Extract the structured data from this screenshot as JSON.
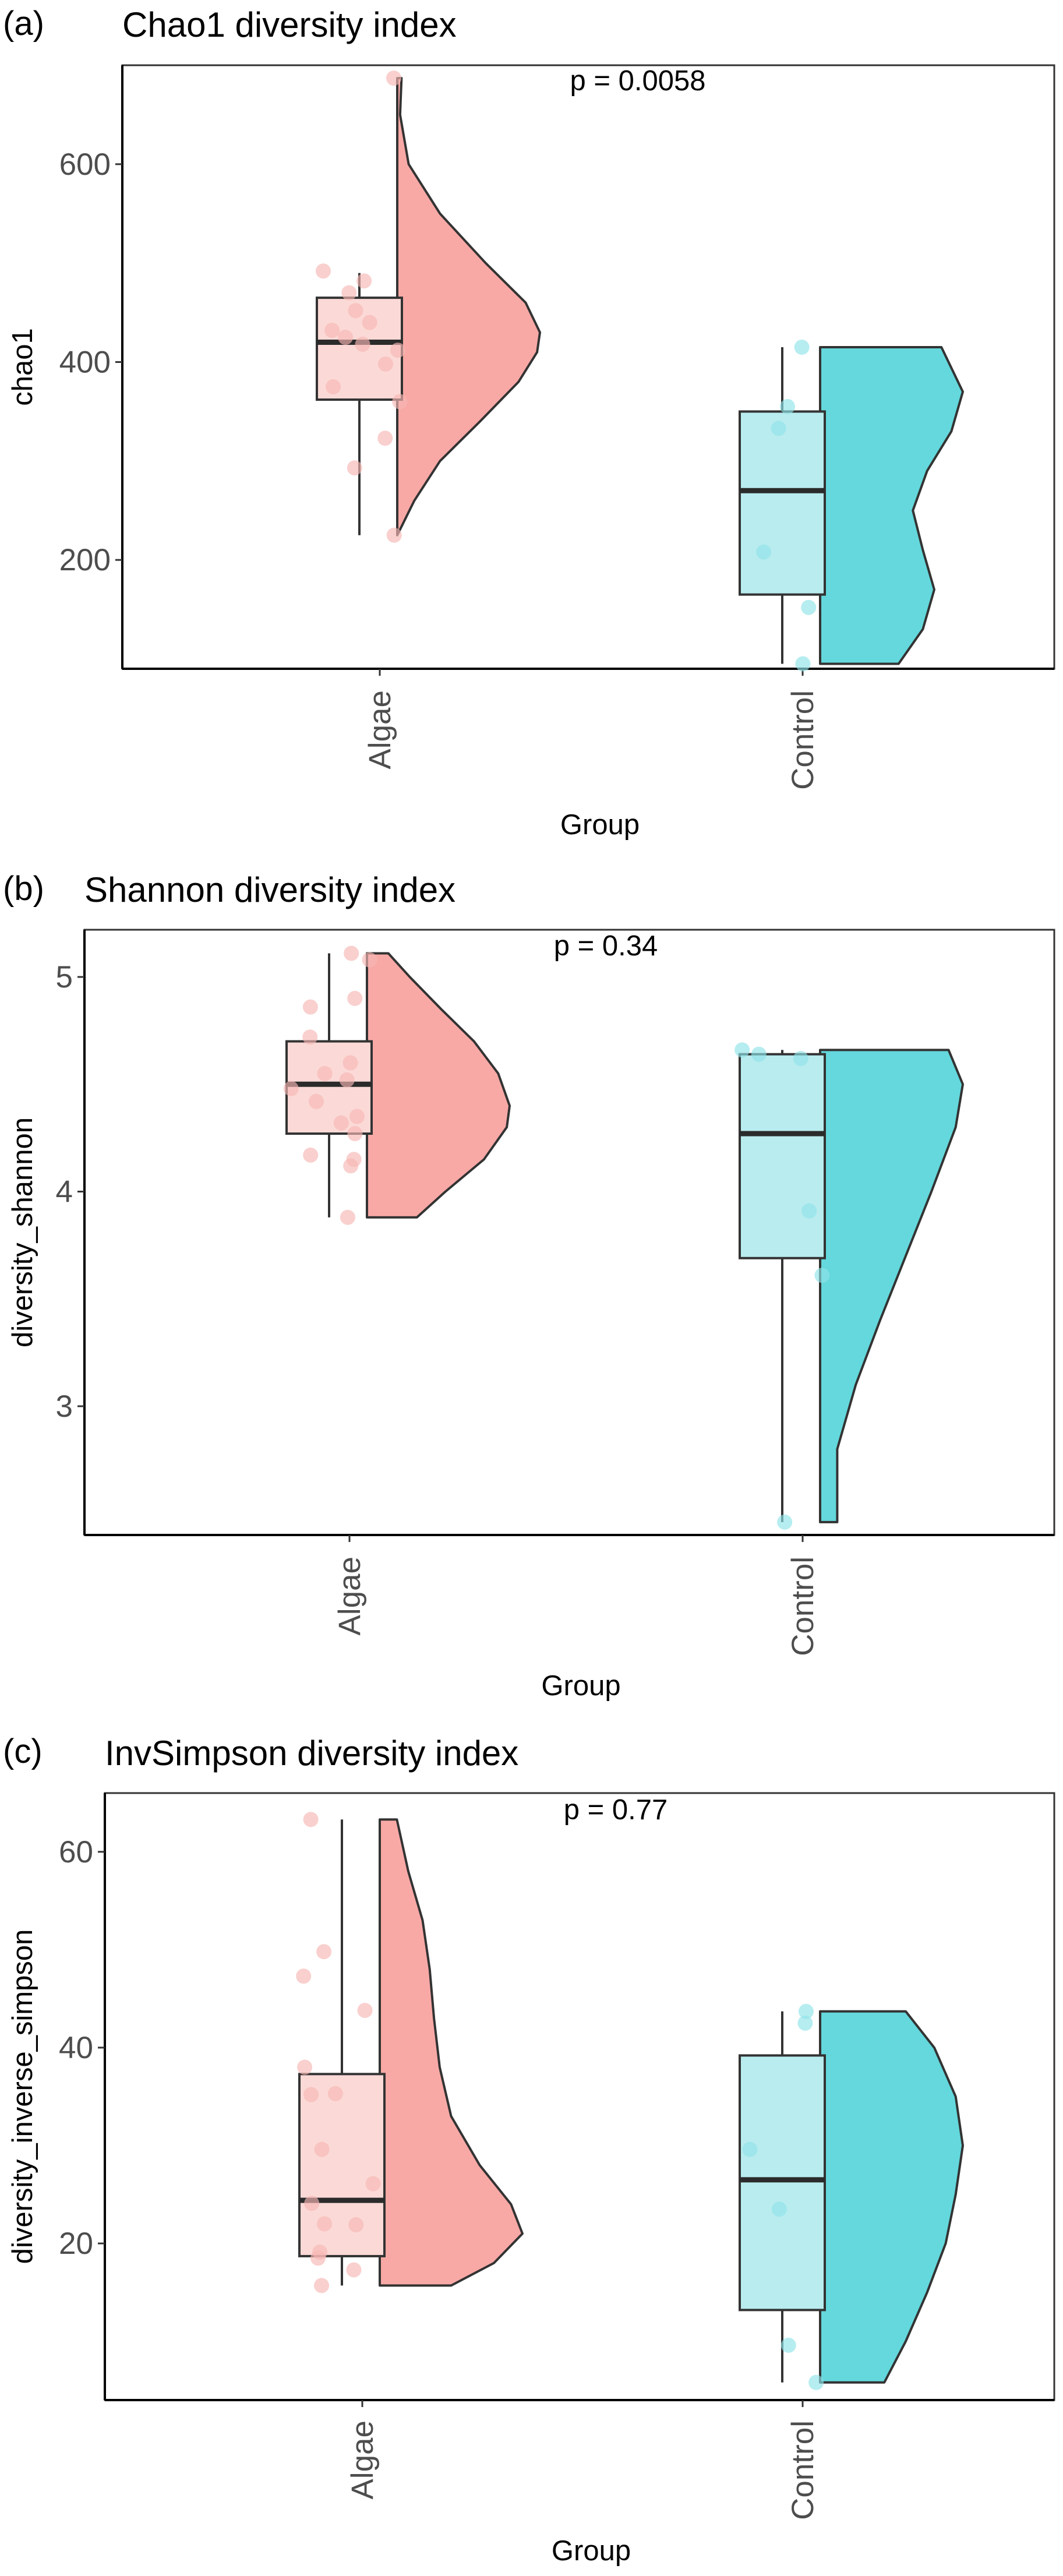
{
  "colors": {
    "algae_fill": "#F8A9A6",
    "algae_box_fill": "#FBD9D6",
    "algae_point": "#F6B7B3",
    "control_fill": "#64D8DC",
    "control_box_fill": "#B9ECEF",
    "control_point": "#8FE3E8",
    "outline": "#333333",
    "median": "#2b2b2b"
  },
  "chart_data": [
    {
      "type": "raincloud",
      "panel_label": "(a)",
      "title": "Chao1 diversity index",
      "p_value_text": "p = 0.0058",
      "xlabel": "Group",
      "ylabel": "chao1",
      "categories": [
        "Algae",
        "Control"
      ],
      "ylim": [
        90,
        700
      ],
      "yticks": [
        200,
        400,
        600
      ],
      "grid": false,
      "series": [
        {
          "name": "Algae",
          "box": {
            "min": 225,
            "q1": 362,
            "median": 420,
            "q3": 465,
            "max": 490
          },
          "points": [
            687,
            492,
            482,
            470,
            452,
            440,
            432,
            425,
            418,
            412,
            398,
            375,
            360,
            323,
            293,
            225
          ],
          "density": [
            [
              225,
              0.0
            ],
            [
              260,
              0.12
            ],
            [
              300,
              0.3
            ],
            [
              340,
              0.58
            ],
            [
              380,
              0.85
            ],
            [
              410,
              0.98
            ],
            [
              430,
              1.0
            ],
            [
              460,
              0.9
            ],
            [
              500,
              0.62
            ],
            [
              550,
              0.3
            ],
            [
              600,
              0.08
            ],
            [
              650,
              0.02
            ],
            [
              687,
              0.03
            ]
          ]
        },
        {
          "name": "Control",
          "box": {
            "min": 95,
            "q1": 165,
            "median": 270,
            "q3": 350,
            "max": 415
          },
          "points": [
            415,
            355,
            333,
            208,
            152,
            95
          ],
          "density": [
            [
              95,
              0.55
            ],
            [
              130,
              0.72
            ],
            [
              170,
              0.8
            ],
            [
              210,
              0.72
            ],
            [
              250,
              0.65
            ],
            [
              290,
              0.75
            ],
            [
              330,
              0.92
            ],
            [
              370,
              1.0
            ],
            [
              400,
              0.9
            ],
            [
              415,
              0.85
            ]
          ]
        }
      ]
    },
    {
      "type": "raincloud",
      "panel_label": "(b)",
      "title": "Shannon diversity index",
      "p_value_text": "p = 0.34",
      "xlabel": "Group",
      "ylabel": "diversity_shannon",
      "categories": [
        "Algae",
        "Control"
      ],
      "ylim": [
        2.4,
        5.22
      ],
      "yticks": [
        3,
        4,
        5
      ],
      "grid": false,
      "series": [
        {
          "name": "Algae",
          "box": {
            "min": 3.88,
            "q1": 4.27,
            "median": 4.5,
            "q3": 4.7,
            "max": 5.11
          },
          "points": [
            5.11,
            5.08,
            4.9,
            4.86,
            4.72,
            4.6,
            4.55,
            4.52,
            4.48,
            4.42,
            4.35,
            4.32,
            4.27,
            4.17,
            4.15,
            4.12,
            3.88
          ],
          "density": [
            [
              3.88,
              0.35
            ],
            [
              4.0,
              0.55
            ],
            [
              4.15,
              0.82
            ],
            [
              4.3,
              0.98
            ],
            [
              4.4,
              1.0
            ],
            [
              4.55,
              0.92
            ],
            [
              4.7,
              0.75
            ],
            [
              4.85,
              0.52
            ],
            [
              5.0,
              0.3
            ],
            [
              5.11,
              0.15
            ]
          ]
        },
        {
          "name": "Control",
          "box": {
            "min": 2.46,
            "q1": 3.69,
            "median": 4.27,
            "q3": 4.64,
            "max": 4.66
          },
          "points": [
            4.66,
            4.64,
            4.62,
            3.91,
            3.61,
            2.46
          ],
          "density": [
            [
              2.46,
              0.12
            ],
            [
              2.8,
              0.12
            ],
            [
              3.1,
              0.25
            ],
            [
              3.4,
              0.42
            ],
            [
              3.7,
              0.6
            ],
            [
              4.0,
              0.78
            ],
            [
              4.3,
              0.95
            ],
            [
              4.5,
              1.0
            ],
            [
              4.66,
              0.9
            ]
          ]
        }
      ]
    },
    {
      "type": "raincloud",
      "panel_label": "(c)",
      "title": "InvSimpson diversity index",
      "p_value_text": "p = 0.77",
      "xlabel": "Group",
      "ylabel": "diversity_inverse_simpson",
      "categories": [
        "Algae",
        "Control"
      ],
      "ylim": [
        4,
        66
      ],
      "yticks": [
        20,
        40,
        60
      ],
      "grid": false,
      "series": [
        {
          "name": "Algae",
          "box": {
            "min": 15.7,
            "q1": 18.7,
            "median": 24.4,
            "q3": 37.3,
            "max": 63.3
          },
          "points": [
            63.3,
            49.8,
            47.3,
            43.8,
            38.0,
            35.2,
            35.3,
            29.6,
            26.1,
            24.1,
            22.0,
            21.9,
            19.1,
            18.5,
            17.3,
            15.7
          ],
          "density": [
            [
              15.7,
              0.5
            ],
            [
              18,
              0.8
            ],
            [
              21,
              1.0
            ],
            [
              24,
              0.92
            ],
            [
              28,
              0.7
            ],
            [
              33,
              0.5
            ],
            [
              38,
              0.42
            ],
            [
              43,
              0.38
            ],
            [
              48,
              0.35
            ],
            [
              53,
              0.3
            ],
            [
              58,
              0.2
            ],
            [
              63.3,
              0.12
            ]
          ]
        },
        {
          "name": "Control",
          "box": {
            "min": 5.8,
            "q1": 13.2,
            "median": 26.5,
            "q3": 39.2,
            "max": 43.7
          },
          "points": [
            43.7,
            42.5,
            29.6,
            23.5,
            9.6,
            5.8
          ],
          "density": [
            [
              5.8,
              0.45
            ],
            [
              10,
              0.6
            ],
            [
              15,
              0.75
            ],
            [
              20,
              0.88
            ],
            [
              25,
              0.95
            ],
            [
              30,
              1.0
            ],
            [
              35,
              0.95
            ],
            [
              40,
              0.8
            ],
            [
              43.7,
              0.6
            ]
          ]
        }
      ]
    }
  ]
}
